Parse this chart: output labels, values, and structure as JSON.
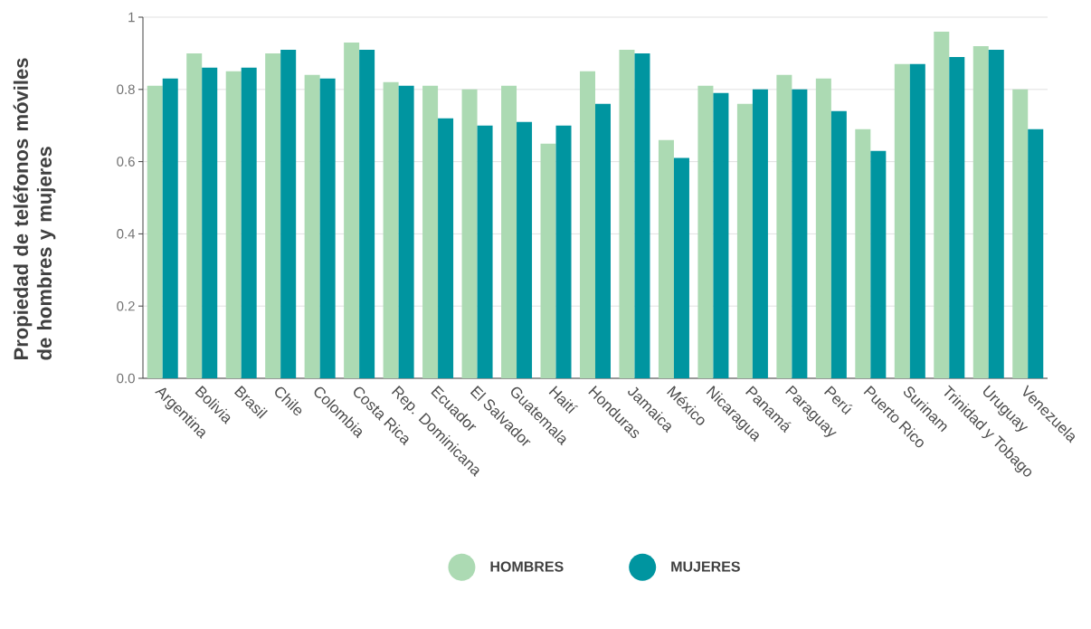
{
  "chart_data": {
    "type": "bar",
    "ylabel": "Propiedad de teléfonos móviles de hombres y mujeres",
    "categories": [
      "Argentina",
      "Bolivia",
      "Brasil",
      "Chile",
      "Colombia",
      "Costa Rica",
      "Rep. Dominicana",
      "Ecuador",
      "El Salvador",
      "Guatemala",
      "Haití",
      "Honduras",
      "Jamaica",
      "México",
      "Nicaragua",
      "Panamá",
      "Paraguay",
      "Perú",
      "Puerto Rico",
      "Surinam",
      "Trinidad y Tobago",
      "Uruguay",
      "Venezuela"
    ],
    "series": [
      {
        "name": "HOMBRES",
        "color": "#acdab3",
        "values": [
          0.81,
          0.9,
          0.85,
          0.9,
          0.84,
          0.93,
          0.82,
          0.81,
          0.8,
          0.81,
          0.65,
          0.85,
          0.91,
          0.66,
          0.81,
          0.76,
          0.84,
          0.83,
          0.69,
          0.87,
          0.96,
          0.92,
          0.8
        ]
      },
      {
        "name": "MUJERES",
        "color": "#0095a0",
        "values": [
          0.83,
          0.86,
          0.86,
          0.91,
          0.83,
          0.91,
          0.81,
          0.72,
          0.7,
          0.71,
          0.7,
          0.76,
          0.9,
          0.61,
          0.79,
          0.8,
          0.8,
          0.74,
          0.63,
          0.87,
          0.89,
          0.91,
          0.69
        ]
      }
    ],
    "ylim": [
      0,
      1
    ],
    "yticks": [
      {
        "value": 0,
        "label": "0.0"
      },
      {
        "value": 0.2,
        "label": "0.2"
      },
      {
        "value": 0.4,
        "label": "0.4"
      },
      {
        "value": 0.6,
        "label": "0.6"
      },
      {
        "value": 0.8,
        "label": "0.8"
      },
      {
        "value": 1,
        "label": "1"
      }
    ],
    "grid": "y",
    "legend": "bottom"
  }
}
